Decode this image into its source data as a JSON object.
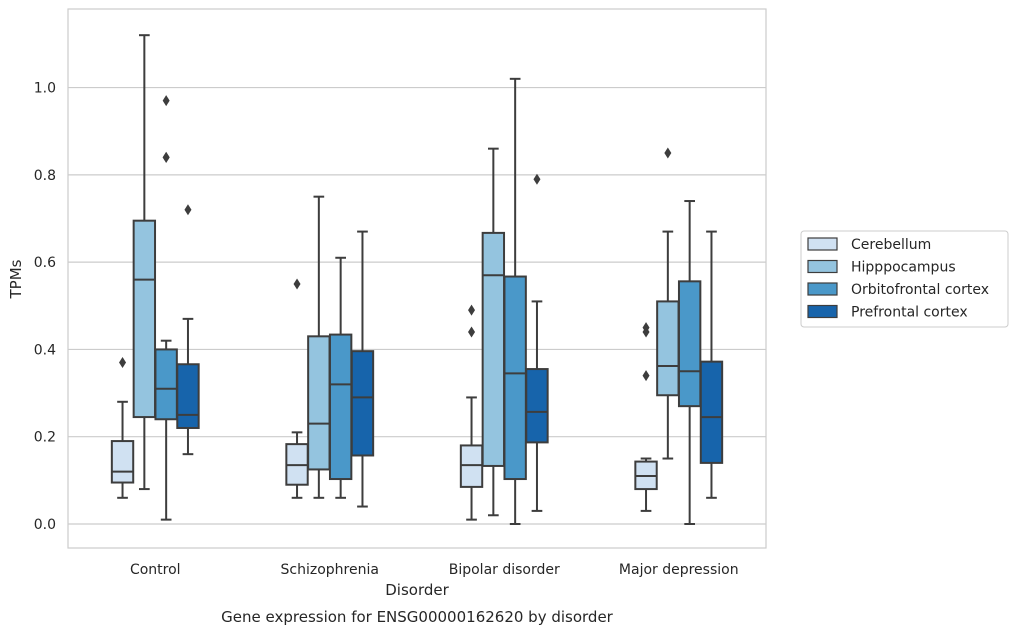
{
  "chart_data": {
    "type": "boxplot",
    "caption": "Gene expression for ENSG00000162620 by disorder",
    "xlabel": "Disorder",
    "ylabel": "TPMs",
    "ylim": [
      -0.055,
      1.18
    ],
    "yticks": [
      0.0,
      0.2,
      0.4,
      0.6,
      0.8,
      1.0
    ],
    "ytick_labels": [
      "0.0",
      "0.2",
      "0.4",
      "0.6",
      "0.8",
      "1.0"
    ],
    "grid": "horizontal",
    "legend_position": "right",
    "categories": [
      "Control",
      "Schizophrenia",
      "Bipolar disorder",
      "Major depression"
    ],
    "series": [
      {
        "name": "Cerebellum",
        "color": "#d0e1f2",
        "boxes": [
          {
            "whisker_low": 0.06,
            "q1": 0.095,
            "median": 0.12,
            "q3": 0.19,
            "whisker_high": 0.28,
            "outliers": [
              0.37
            ]
          },
          {
            "whisker_low": 0.06,
            "q1": 0.09,
            "median": 0.135,
            "q3": 0.183,
            "whisker_high": 0.21,
            "outliers": [
              0.55
            ]
          },
          {
            "whisker_low": 0.01,
            "q1": 0.085,
            "median": 0.135,
            "q3": 0.18,
            "whisker_high": 0.29,
            "outliers": [
              0.44,
              0.49
            ]
          },
          {
            "whisker_low": 0.03,
            "q1": 0.08,
            "median": 0.11,
            "q3": 0.143,
            "whisker_high": 0.15,
            "outliers": [
              0.34,
              0.44,
              0.45
            ]
          }
        ]
      },
      {
        "name": "Hipppocampus",
        "color": "#94c4df",
        "boxes": [
          {
            "whisker_low": 0.08,
            "q1": 0.245,
            "median": 0.56,
            "q3": 0.695,
            "whisker_high": 1.12,
            "outliers": []
          },
          {
            "whisker_low": 0.06,
            "q1": 0.125,
            "median": 0.23,
            "q3": 0.43,
            "whisker_high": 0.75,
            "outliers": []
          },
          {
            "whisker_low": 0.02,
            "q1": 0.133,
            "median": 0.57,
            "q3": 0.667,
            "whisker_high": 0.86,
            "outliers": []
          },
          {
            "whisker_low": 0.15,
            "q1": 0.295,
            "median": 0.362,
            "q3": 0.51,
            "whisker_high": 0.67,
            "outliers": [
              0.85
            ]
          }
        ]
      },
      {
        "name": "Orbitofrontal cortex",
        "color": "#4a98c9",
        "boxes": [
          {
            "whisker_low": 0.01,
            "q1": 0.24,
            "median": 0.31,
            "q3": 0.4,
            "whisker_high": 0.42,
            "outliers": [
              0.84,
              0.84,
              0.97
            ]
          },
          {
            "whisker_low": 0.06,
            "q1": 0.103,
            "median": 0.32,
            "q3": 0.434,
            "whisker_high": 0.61,
            "outliers": []
          },
          {
            "whisker_low": 0.0,
            "q1": 0.103,
            "median": 0.345,
            "q3": 0.567,
            "whisker_high": 1.02,
            "outliers": []
          },
          {
            "whisker_low": 0.0,
            "q1": 0.27,
            "median": 0.35,
            "q3": 0.556,
            "whisker_high": 0.74,
            "outliers": []
          }
        ]
      },
      {
        "name": "Prefrontal cortex",
        "color": "#1764ab",
        "boxes": [
          {
            "whisker_low": 0.16,
            "q1": 0.22,
            "median": 0.25,
            "q3": 0.366,
            "whisker_high": 0.47,
            "outliers": [
              0.72
            ]
          },
          {
            "whisker_low": 0.04,
            "q1": 0.157,
            "median": 0.29,
            "q3": 0.396,
            "whisker_high": 0.67,
            "outliers": []
          },
          {
            "whisker_low": 0.03,
            "q1": 0.187,
            "median": 0.257,
            "q3": 0.355,
            "whisker_high": 0.51,
            "outliers": [
              0.79
            ]
          },
          {
            "whisker_low": 0.06,
            "q1": 0.14,
            "median": 0.245,
            "q3": 0.372,
            "whisker_high": 0.67,
            "outliers": []
          }
        ]
      }
    ]
  }
}
